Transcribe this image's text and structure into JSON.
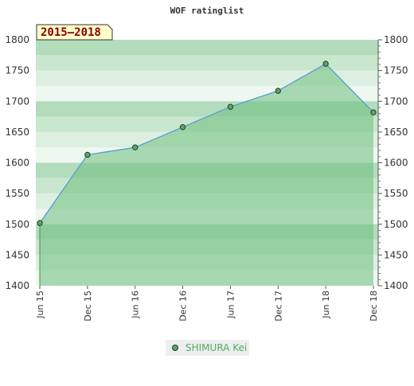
{
  "chart_data": {
    "type": "area",
    "title": "WOF ratinglist",
    "period_label": "2015–2018",
    "xlabel": "",
    "ylabel": "",
    "ylim": [
      1400,
      1800
    ],
    "yticks": [
      1400,
      1450,
      1500,
      1550,
      1600,
      1650,
      1700,
      1750,
      1800
    ],
    "x_tick_labels": [
      "Jun 15",
      "Dec 15",
      "Jun 16",
      "Dec 16",
      "Jun 17",
      "Dec 17",
      "Jun 18",
      "Dec 18"
    ],
    "series": [
      {
        "name": "SHIMURA Kei",
        "x": [
          "Jun 15",
          "Dec 15",
          "Jun 16",
          "Dec 16",
          "Jun 17",
          "Dec 17",
          "Jun 18",
          "Dec 18"
        ],
        "values": [
          1502,
          1613,
          1625,
          1658,
          1691,
          1717,
          1761,
          1682
        ]
      }
    ],
    "legend_position": "bottom-center",
    "grid": true,
    "colors": {
      "line": "#5b9bd5",
      "fill": "#6dbf7e",
      "marker": "#4daf5f",
      "legend_text": "#4daf5f",
      "period_text": "#8b0000",
      "period_bg": "#ffffcc"
    }
  }
}
